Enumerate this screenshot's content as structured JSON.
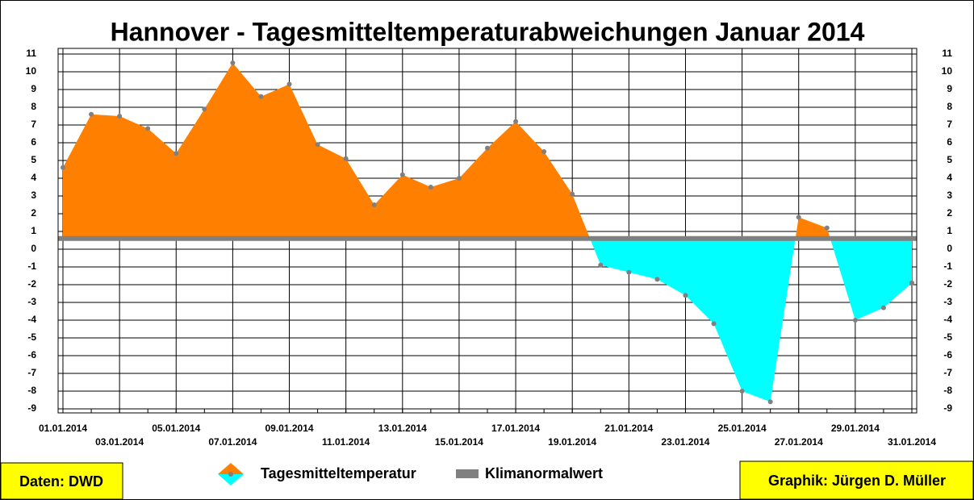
{
  "chart_data": {
    "type": "area",
    "title": "Hannover - Tagesmitteltemperaturabweichungen Januar 2014",
    "categories": [
      "01.01.2014",
      null,
      "03.01.2014",
      null,
      "05.01.2014",
      null,
      "07.01.2014",
      null,
      "09.01.2014",
      null,
      "11.01.2014",
      null,
      "13.01.2014",
      null,
      "15.01.2014",
      null,
      "17.01.2014",
      null,
      "19.01.2014",
      null,
      "21.01.2014",
      null,
      "23.01.2014",
      null,
      "25.01.2014",
      null,
      "27.01.2014",
      null,
      "29.01.2014",
      null,
      "31.01.2014"
    ],
    "series": [
      {
        "name": "Tagesmitteltemperatur",
        "color": "#ff8000",
        "color_below": "#00ffff",
        "values": [
          4.6,
          7.6,
          7.5,
          6.8,
          5.4,
          7.9,
          10.5,
          8.6,
          9.3,
          5.9,
          5.1,
          2.5,
          4.2,
          3.5,
          4.0,
          5.7,
          7.2,
          5.5,
          3.1,
          -0.9,
          -1.3,
          -1.7,
          -2.6,
          -4.2,
          -8.0,
          -8.6,
          1.8,
          1.2,
          -4.0,
          -3.3,
          -1.9
        ]
      },
      {
        "name": "Klimanormalwert",
        "color": "#808080",
        "value": 0.6
      }
    ],
    "ylim": [
      -9,
      11
    ],
    "yticks": [
      -9,
      -8,
      -7,
      -6,
      -5,
      -4,
      -3,
      -2,
      -1,
      0,
      1,
      2,
      3,
      4,
      5,
      6,
      7,
      8,
      9,
      10,
      11
    ],
    "y2lim": [
      -9,
      11
    ],
    "y2ticks": [
      -9,
      -8,
      -7,
      -6,
      -5,
      -4,
      -3,
      -2,
      -1,
      0,
      1,
      2,
      3,
      4,
      5,
      6,
      7,
      8,
      9,
      10,
      11
    ],
    "grid": true,
    "source": "Daten: DWD",
    "credit": "Graphik: Jürgen D. Müller"
  }
}
